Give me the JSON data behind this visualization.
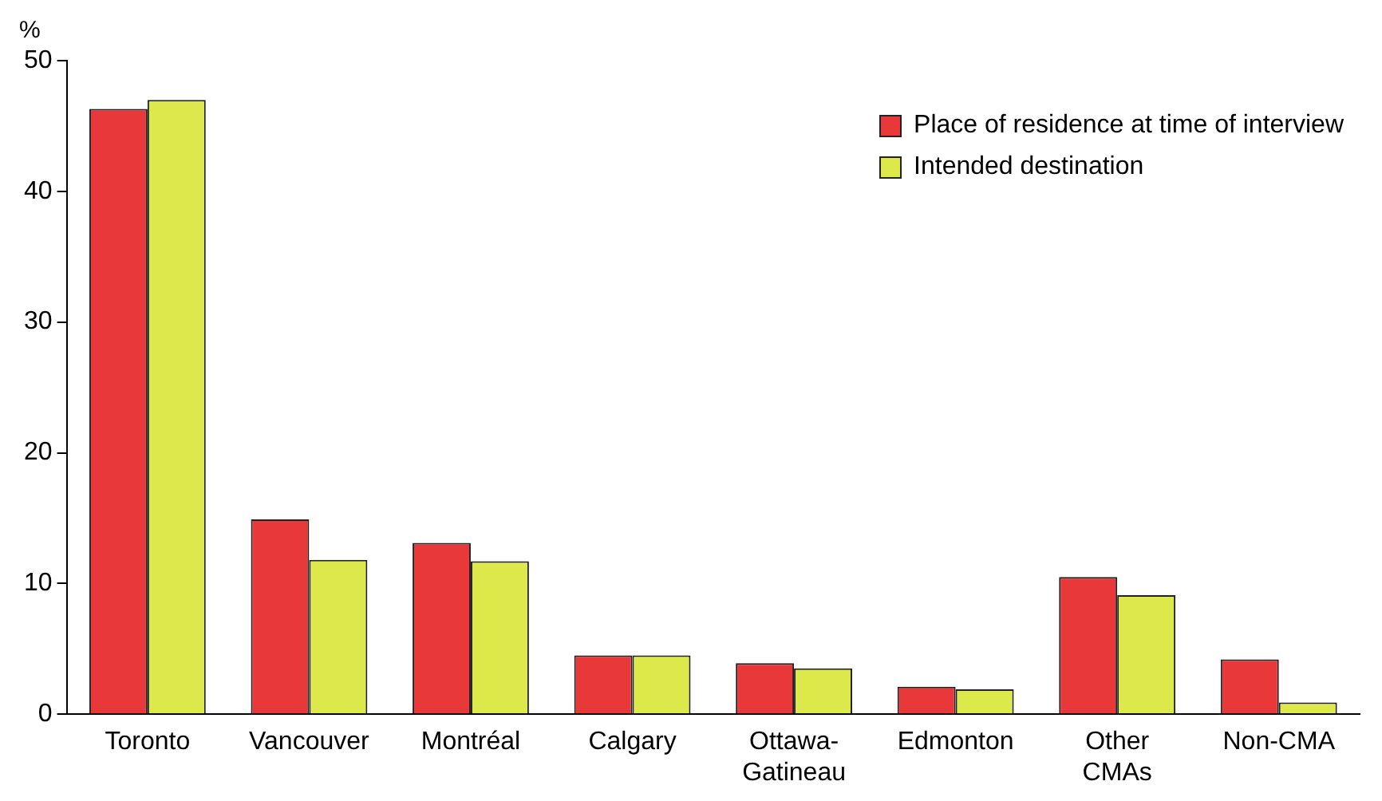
{
  "chart_data": {
    "type": "bar",
    "ylabel": "%",
    "categories": [
      "Toronto",
      "Vancouver",
      "Montréal",
      "Calgary",
      "Ottawa-\nGatineau",
      "Edmonton",
      "Other\nCMAs",
      "Non-CMA"
    ],
    "series": [
      {
        "name": "Place of residence at time of interview",
        "color": "#e8383a",
        "values": [
          46.3,
          14.9,
          13.1,
          4.5,
          3.9,
          2.1,
          10.5,
          4.2
        ]
      },
      {
        "name": "Intended destination",
        "color": "#dde84a",
        "values": [
          47.0,
          11.8,
          11.7,
          4.5,
          3.5,
          1.9,
          9.1,
          0.9
        ]
      }
    ],
    "ylim": [
      0,
      50
    ],
    "yticks": [
      0,
      10,
      20,
      30,
      40,
      50
    ],
    "grid": false,
    "legend": "top right"
  }
}
